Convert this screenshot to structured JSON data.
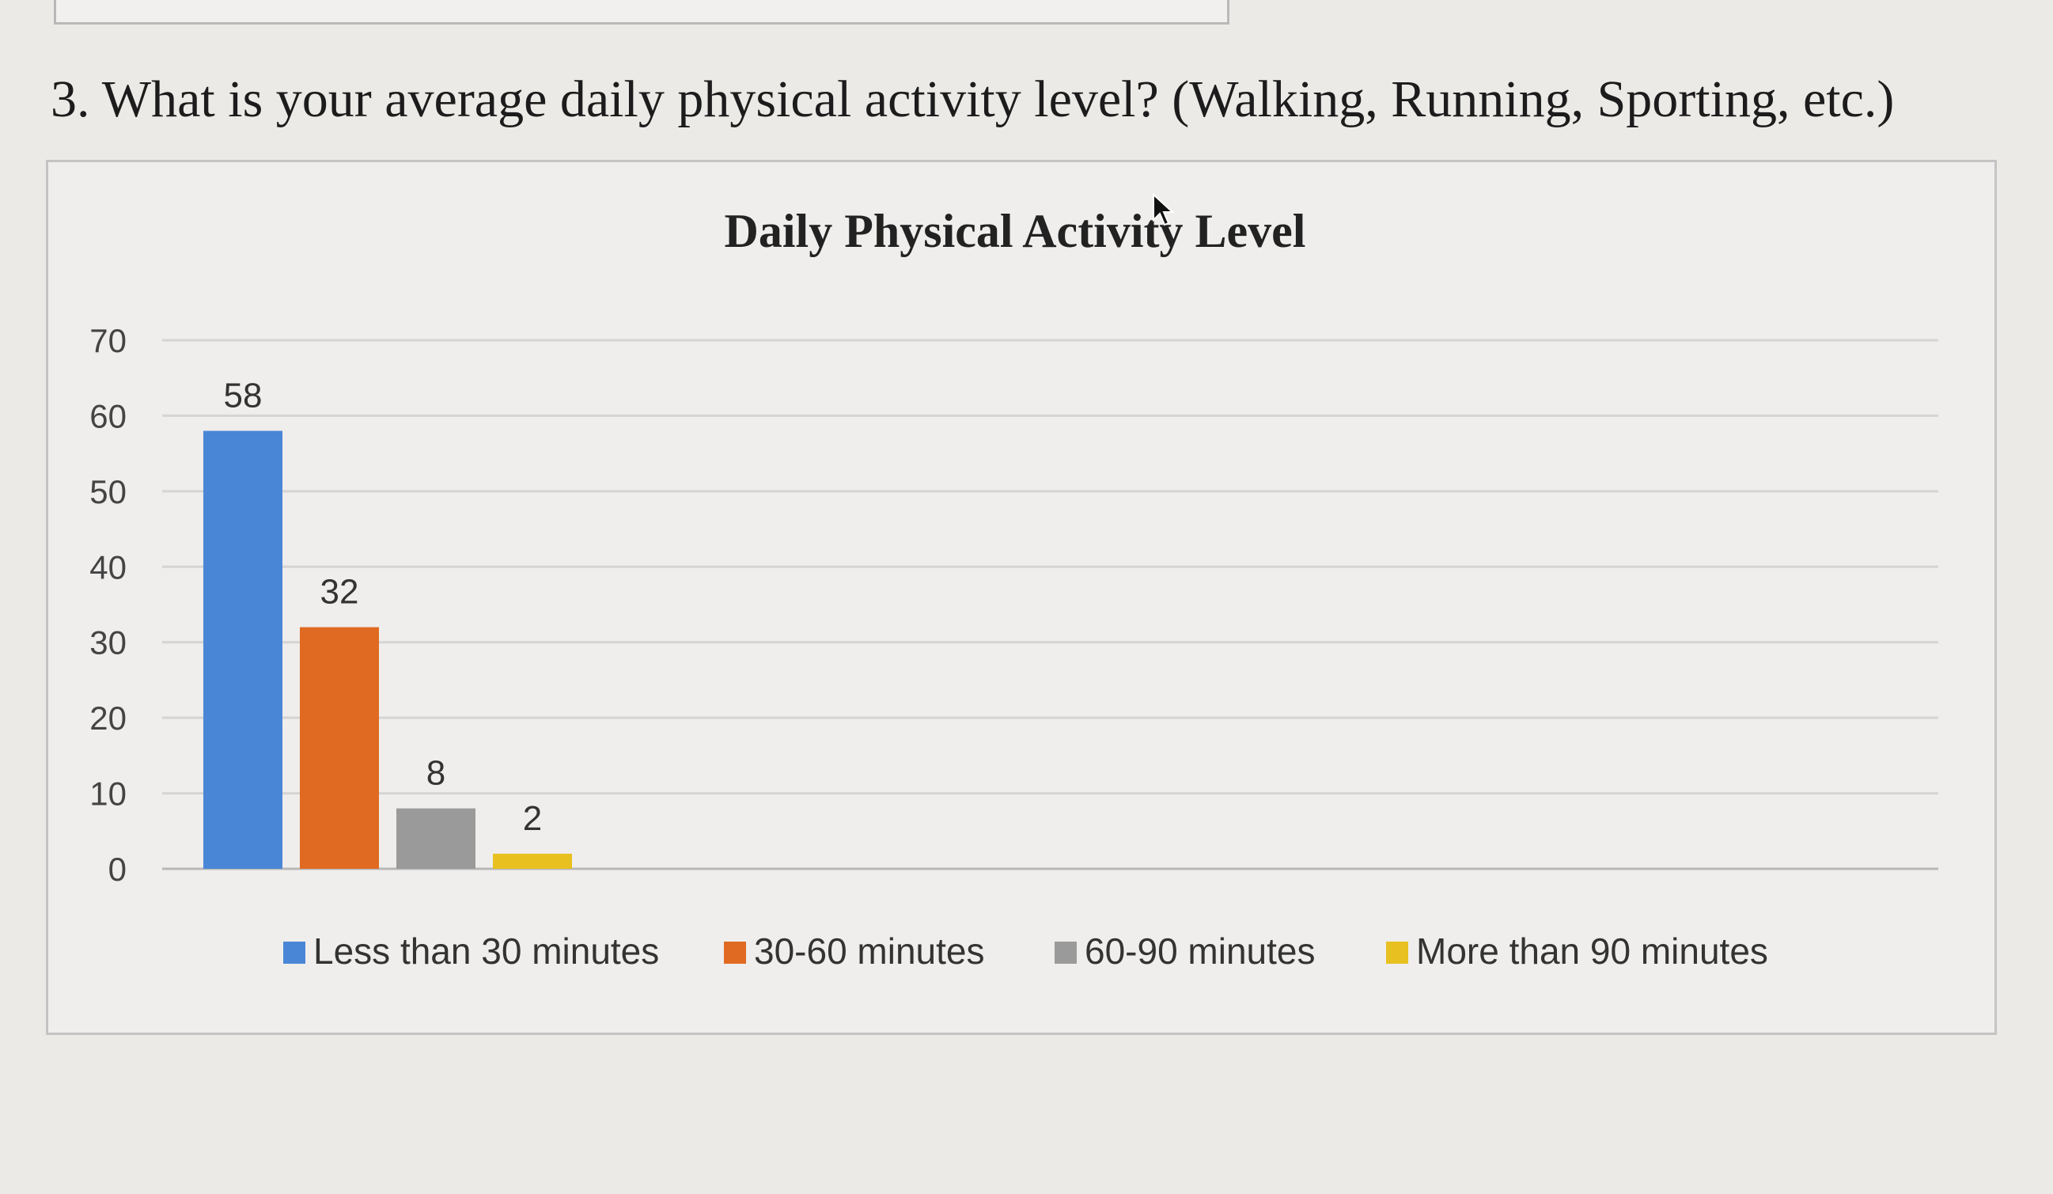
{
  "question": "3. What is your average daily physical activity level? (Walking, Running, Sporting, etc.)",
  "chart_data": {
    "type": "bar",
    "title": "Daily Physical Activity Level",
    "xlabel": "",
    "ylabel": "",
    "ylim": [
      0,
      70
    ],
    "yticks": [
      0,
      10,
      20,
      30,
      40,
      50,
      60,
      70
    ],
    "grid": true,
    "legend_position": "bottom",
    "series": [
      {
        "name": "Less than 30 minutes",
        "value": 58,
        "color": "#4a86d6"
      },
      {
        "name": "30-60 minutes",
        "value": 32,
        "color": "#e06a22"
      },
      {
        "name": "60-90 minutes",
        "value": 8,
        "color": "#9a9a9a"
      },
      {
        "name": "More than 90 minutes",
        "value": 2,
        "color": "#e8c020"
      }
    ]
  }
}
